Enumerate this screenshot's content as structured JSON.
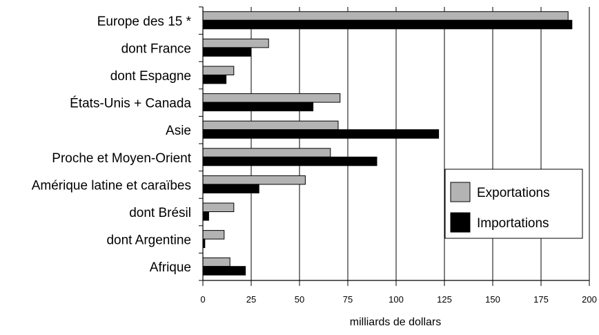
{
  "chart_data": {
    "type": "bar",
    "orientation": "horizontal",
    "categories": [
      "Europe des 15 *",
      "dont France",
      "dont Espagne",
      "États-Unis + Canada",
      "Asie",
      "Proche et Moyen-Orient",
      "Amérique latine et caraïbes",
      "dont Brésil",
      "dont Argentine",
      "Afrique"
    ],
    "series": [
      {
        "name": "Exportations",
        "color": "#b3b3b3",
        "values": [
          189,
          34,
          16,
          71,
          70,
          66,
          53,
          16,
          11,
          14
        ]
      },
      {
        "name": "Importations",
        "color": "#000000",
        "values": [
          191,
          25,
          12,
          57,
          122,
          90,
          29,
          3,
          1,
          22
        ]
      }
    ],
    "xlabel": "milliards de dollars",
    "xlim": [
      0,
      200
    ],
    "xticks": [
      0,
      25,
      50,
      75,
      100,
      125,
      150,
      175,
      200
    ],
    "grid": "vertical",
    "legend_position": "right"
  }
}
